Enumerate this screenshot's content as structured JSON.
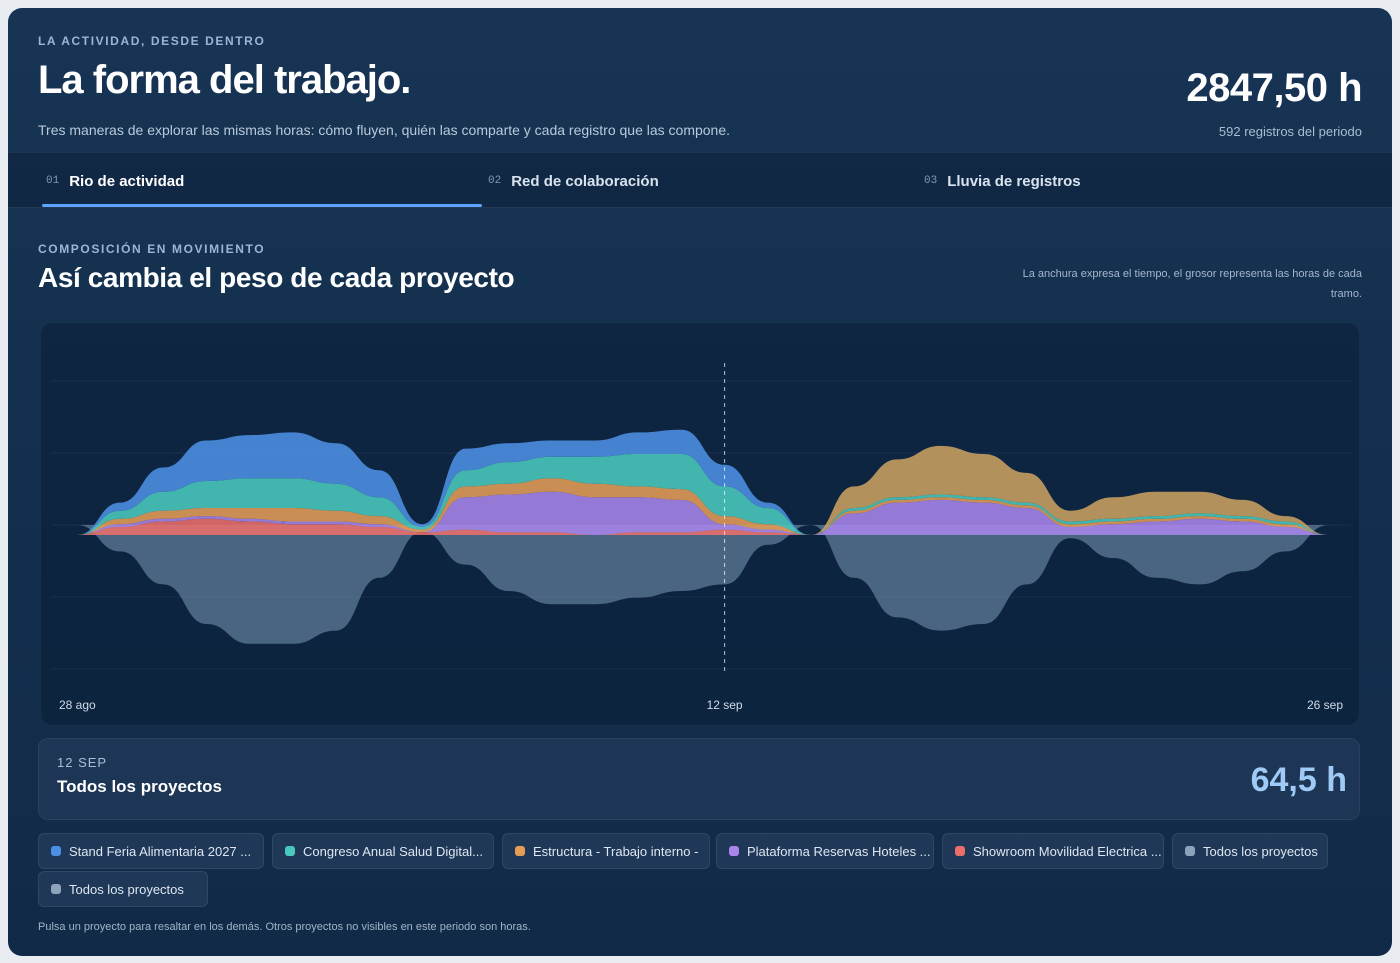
{
  "header": {
    "eyebrow": "LA ACTIVIDAD, DESDE DENTRO",
    "title": "La forma del trabajo.",
    "subtitle": "Tres maneras de explorar las mismas horas: cómo fluyen, quién las comparte y cada registro que las compone.",
    "total": "2847,50 h",
    "records": "592 registros del periodo"
  },
  "tabs": [
    {
      "num": "01",
      "label": "Rio de actividad",
      "active": true
    },
    {
      "num": "02",
      "label": "Red de colaboración",
      "active": false
    },
    {
      "num": "03",
      "label": "Lluvia de registros",
      "active": false
    }
  ],
  "section": {
    "eyebrow": "COMPOSICIÓN EN MOVIMIENTO",
    "title": "Así cambia el peso de cada proyecto",
    "note": "La anchura expresa el tiempo, el grosor representa las horas de cada tramo."
  },
  "chart_data": {
    "type": "area",
    "style": "streamgraph",
    "x": [
      "28 ago",
      "29 ago",
      "30 ago",
      "31 ago",
      "1 sep",
      "2 sep",
      "3 sep",
      "4 sep",
      "5 sep",
      "6 sep",
      "7 sep",
      "8 sep",
      "9 sep",
      "10 sep",
      "11 sep",
      "12 sep",
      "13 sep",
      "14 sep",
      "15 sep",
      "16 sep",
      "17 sep",
      "18 sep",
      "19 sep",
      "20 sep",
      "21 sep",
      "22 sep",
      "23 sep",
      "24 sep",
      "25 sep",
      "26 sep"
    ],
    "x_tick_labels": [
      "28 ago",
      "12 sep",
      "26 sep"
    ],
    "highlight_x": "12 sep",
    "series": [
      {
        "name": "Todos los proyectos",
        "color": "#7d9ab8",
        "values": [
          0,
          4,
          9,
          15,
          18,
          18,
          16,
          8,
          1,
          6,
          10,
          12,
          12,
          11,
          10,
          9,
          3,
          0,
          8,
          14,
          16,
          15,
          9,
          2,
          5,
          8,
          9,
          7,
          4,
          0
        ]
      },
      {
        "name": "Showroom Movilidad Electrica ...",
        "color": "#ea6f6a",
        "values": [
          0,
          3,
          5,
          6,
          5,
          4,
          4,
          3,
          1,
          2,
          1,
          1,
          0,
          1,
          1,
          2,
          1,
          0,
          0,
          0,
          0,
          0,
          0,
          0,
          0,
          0,
          0,
          0,
          0,
          0
        ]
      },
      {
        "name": "Plataforma Reservas Hoteles ...",
        "color": "#a985ea",
        "values": [
          0,
          1,
          1,
          1,
          1,
          1,
          1,
          1,
          0,
          12,
          14,
          15,
          14,
          13,
          12,
          2,
          1,
          0,
          8,
          12,
          13,
          12,
          10,
          3,
          4,
          5,
          6,
          5,
          3,
          0
        ]
      },
      {
        "name": "Estructura - Trabajo interno -",
        "color": "#e59d56",
        "values": [
          0,
          2,
          3,
          3,
          4,
          5,
          4,
          3,
          1,
          4,
          4,
          5,
          5,
          4,
          4,
          3,
          2,
          0,
          1,
          1,
          1,
          1,
          1,
          1,
          1,
          1,
          1,
          1,
          1,
          0
        ]
      },
      {
        "name": "Congreso Anual Salud Digital...",
        "color": "#49c9bd",
        "values": [
          0,
          3,
          7,
          10,
          11,
          11,
          10,
          7,
          1,
          6,
          8,
          8,
          10,
          12,
          13,
          11,
          6,
          0,
          1,
          1,
          1,
          1,
          1,
          1,
          1,
          1,
          1,
          1,
          1,
          0
        ]
      },
      {
        "name": "Stand Feria Alimentaria 2027 ...",
        "color": "#4d8fe3",
        "values": [
          0,
          3,
          9,
          15,
          16,
          17,
          15,
          10,
          1,
          8,
          7,
          6,
          6,
          8,
          9,
          8,
          2,
          0,
          0,
          0,
          0,
          0,
          0,
          0,
          0,
          0,
          0,
          0,
          0,
          0
        ]
      },
      {
        "name": "Todos los proyectos",
        "color": "#c9a060",
        "values": [
          0,
          0,
          0,
          0,
          0,
          0,
          0,
          0,
          0,
          0,
          0,
          0,
          0,
          0,
          0,
          0,
          0,
          0,
          8,
          14,
          18,
          16,
          11,
          4,
          8,
          9,
          8,
          6,
          2,
          0
        ]
      }
    ]
  },
  "detail": {
    "date": "12 SEP",
    "project": "Todos los proyectos",
    "hours": "64,5 h"
  },
  "chips": [
    {
      "label": "Stand Feria Alimentaria 2027 ...",
      "color": "#4d8fe3"
    },
    {
      "label": "Congreso Anual Salud Digital...",
      "color": "#49c9bd"
    },
    {
      "label": "Estructura - Trabajo interno -",
      "color": "#e59d56"
    },
    {
      "label": "Plataforma Reservas Hoteles ...",
      "color": "#a985ea"
    },
    {
      "label": "Showroom Movilidad Electrica ...",
      "color": "#ea6f6a"
    },
    {
      "label": "Todos los proyectos",
      "color": "#8ea3bb"
    },
    {
      "label": "Todos los proyectos",
      "color": "#8ea3bb"
    }
  ],
  "footer": "Pulsa un proyecto para resaltar en los demás. Otros proyectos no visibles en este periodo son horas."
}
